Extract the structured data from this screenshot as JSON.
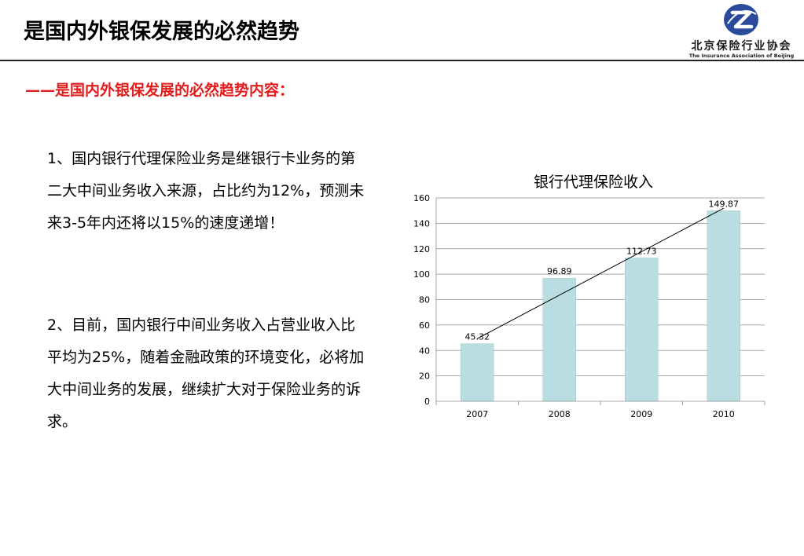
{
  "slide": {
    "title": "是国内外银保发展的必然趋势",
    "subtitle": "——是国内外银保发展的必然趋势内容：",
    "paragraphs": [
      "1、国内银行代理保险业务是继银行卡业务的第二大中间业务收入来源，占比约为12%，预测未来3-5年内还将以15%的速度递增！",
      "2、目前，国内银行中间业务收入占营业收入比平均为25%，随着金融政策的环境变化，必将加大中间业务的发展，继续扩大对于保险业务的诉求。"
    ]
  },
  "logo": {
    "name_cn": "北京保险行业协会",
    "name_en": "The Insurance Association of BeiJing",
    "icon": "z-swirl-logo-icon",
    "color": "#2a4a9c"
  },
  "colors": {
    "subtitle": "#e31b1b",
    "bar_fill": "#b9dde0",
    "bar_stroke": "#9cc8cc",
    "grid": "#8c8c8c"
  },
  "chart_data": {
    "type": "bar",
    "title": "银行代理保险收入",
    "categories": [
      "2007",
      "2008",
      "2009",
      "2010"
    ],
    "values": [
      45.32,
      96.89,
      112.73,
      149.87
    ],
    "data_labels": [
      "45.32",
      "96.89",
      "112.73",
      "149.87"
    ],
    "ylim": [
      0,
      160
    ],
    "yticks": [
      "0",
      "20",
      "40",
      "60",
      "80",
      "100",
      "120",
      "140",
      "160"
    ],
    "grid": true,
    "trendline": true
  }
}
